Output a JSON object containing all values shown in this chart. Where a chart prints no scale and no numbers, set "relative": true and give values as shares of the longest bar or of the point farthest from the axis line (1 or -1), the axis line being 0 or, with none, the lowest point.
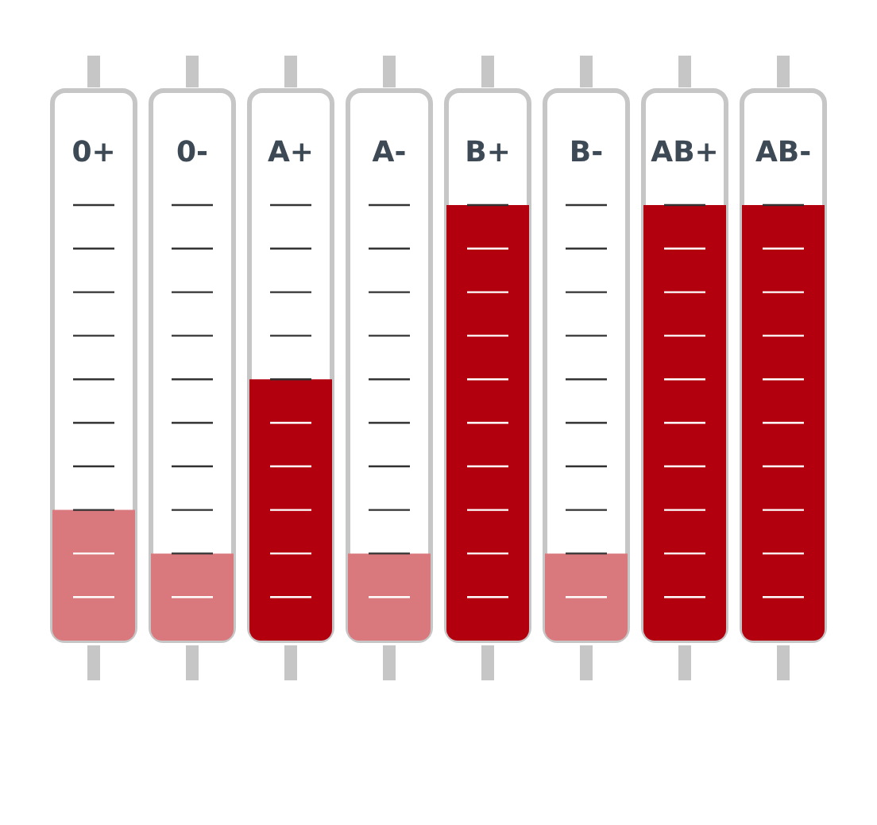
{
  "chart_data": {
    "type": "bar",
    "relative": true,
    "categories": [
      "0+",
      "0-",
      "A+",
      "A-",
      "B+",
      "B-",
      "AB+",
      "AB-"
    ],
    "values": [
      0.3,
      0.2,
      0.6,
      0.2,
      1,
      0.2,
      1,
      1
    ],
    "colors": [
      "#d9797d",
      "#d9797d",
      "#b2000f",
      "#d9797d",
      "#b2000f",
      "#d9797d",
      "#b2000f",
      "#b2000f"
    ]
  }
}
